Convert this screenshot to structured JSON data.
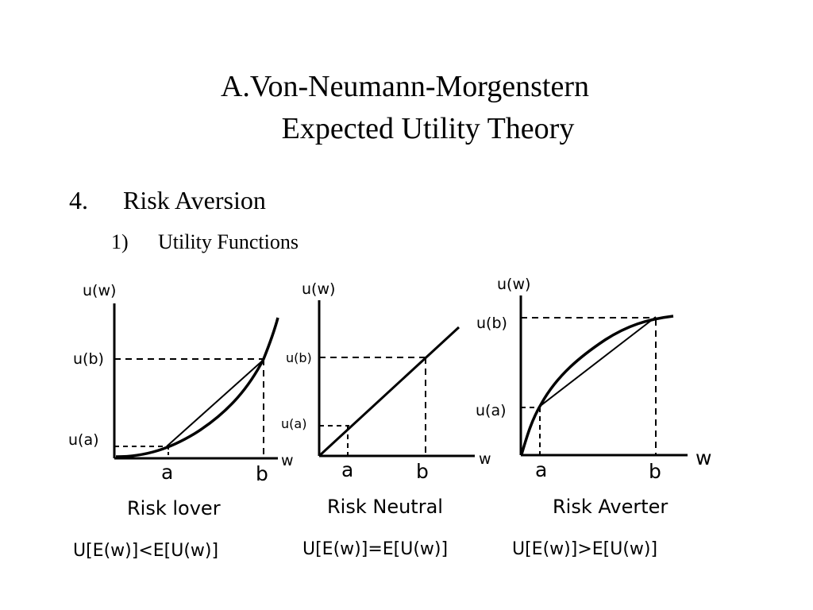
{
  "slide": {
    "title_line1": "A.Von-Neumann-Morgenstern",
    "title_line2": "Expected Utility Theory",
    "section_number": "4.",
    "section_title": "Risk Aversion",
    "subsection_number": "1)",
    "subsection_title": "Utility Functions"
  },
  "panels": [
    {
      "y_label": "u(w)",
      "x_label": "w",
      "ub_label": "u(b)",
      "ua_label": "u(a)",
      "a_label": "a",
      "b_label": "b",
      "caption": "Risk lover",
      "inequality": "U[E(w)]<E[U(w)]",
      "curve": "convex"
    },
    {
      "y_label": "u(w)",
      "x_label": "w",
      "ub_label": "u(b)",
      "ua_label": "u(a)",
      "a_label": "a",
      "b_label": "b",
      "caption": "Risk Neutral",
      "inequality": "U[E(w)]=E[U(w)]",
      "curve": "linear"
    },
    {
      "y_label": "u(w)",
      "x_label": "w",
      "ub_label": "u(b)",
      "ua_label": "u(a)",
      "a_label": "a",
      "b_label": "b",
      "caption": "Risk Averter",
      "inequality": "U[E(w)]>E[U(w)]",
      "curve": "concave"
    }
  ]
}
